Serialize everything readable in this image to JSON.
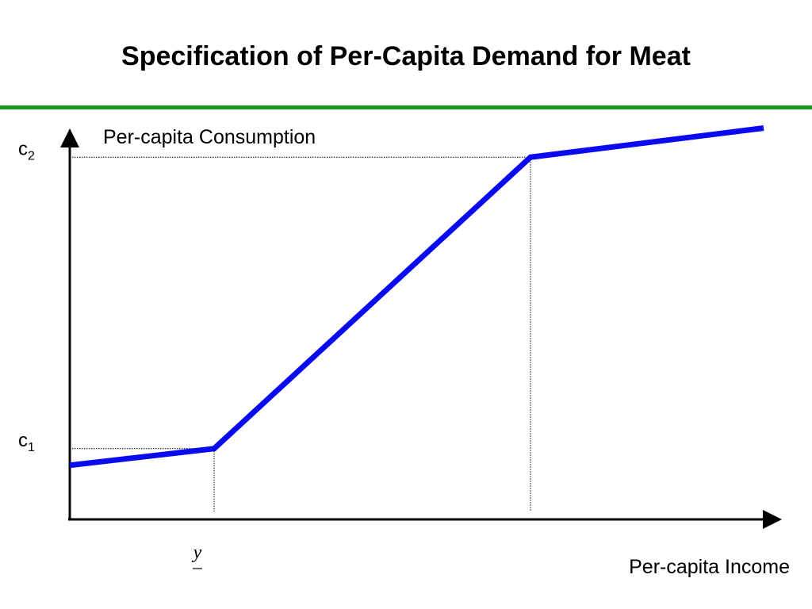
{
  "slide": {
    "title": "Specification of Per-Capita Demand for Meat",
    "rule_color": "#1a9a1a"
  },
  "chart_data": {
    "type": "line",
    "ylabel": "Per-capita Consumption",
    "xlabel": "Per-capita Income",
    "line_color": "#0a0aee",
    "y_ticks": [
      {
        "base": "c",
        "sub": "1",
        "at": "c1"
      },
      {
        "base": "c",
        "sub": "2",
        "at": "c2"
      }
    ],
    "x_ticks": [
      {
        "label": "y",
        "underline": true,
        "at": "y_lower"
      }
    ],
    "reference_levels": {
      "y_lower": 0.26,
      "y_upper": 0.83,
      "c1": 0.17,
      "c2": 0.87
    },
    "series": [
      {
        "x": [
          0,
          0.26,
          0.83,
          1.25
        ],
        "y": [
          0.13,
          0.17,
          0.87,
          0.94
        ]
      }
    ],
    "guides": [
      {
        "from": "c1",
        "to": "y_lower"
      },
      {
        "from": "c2",
        "to": "y_upper"
      }
    ]
  }
}
